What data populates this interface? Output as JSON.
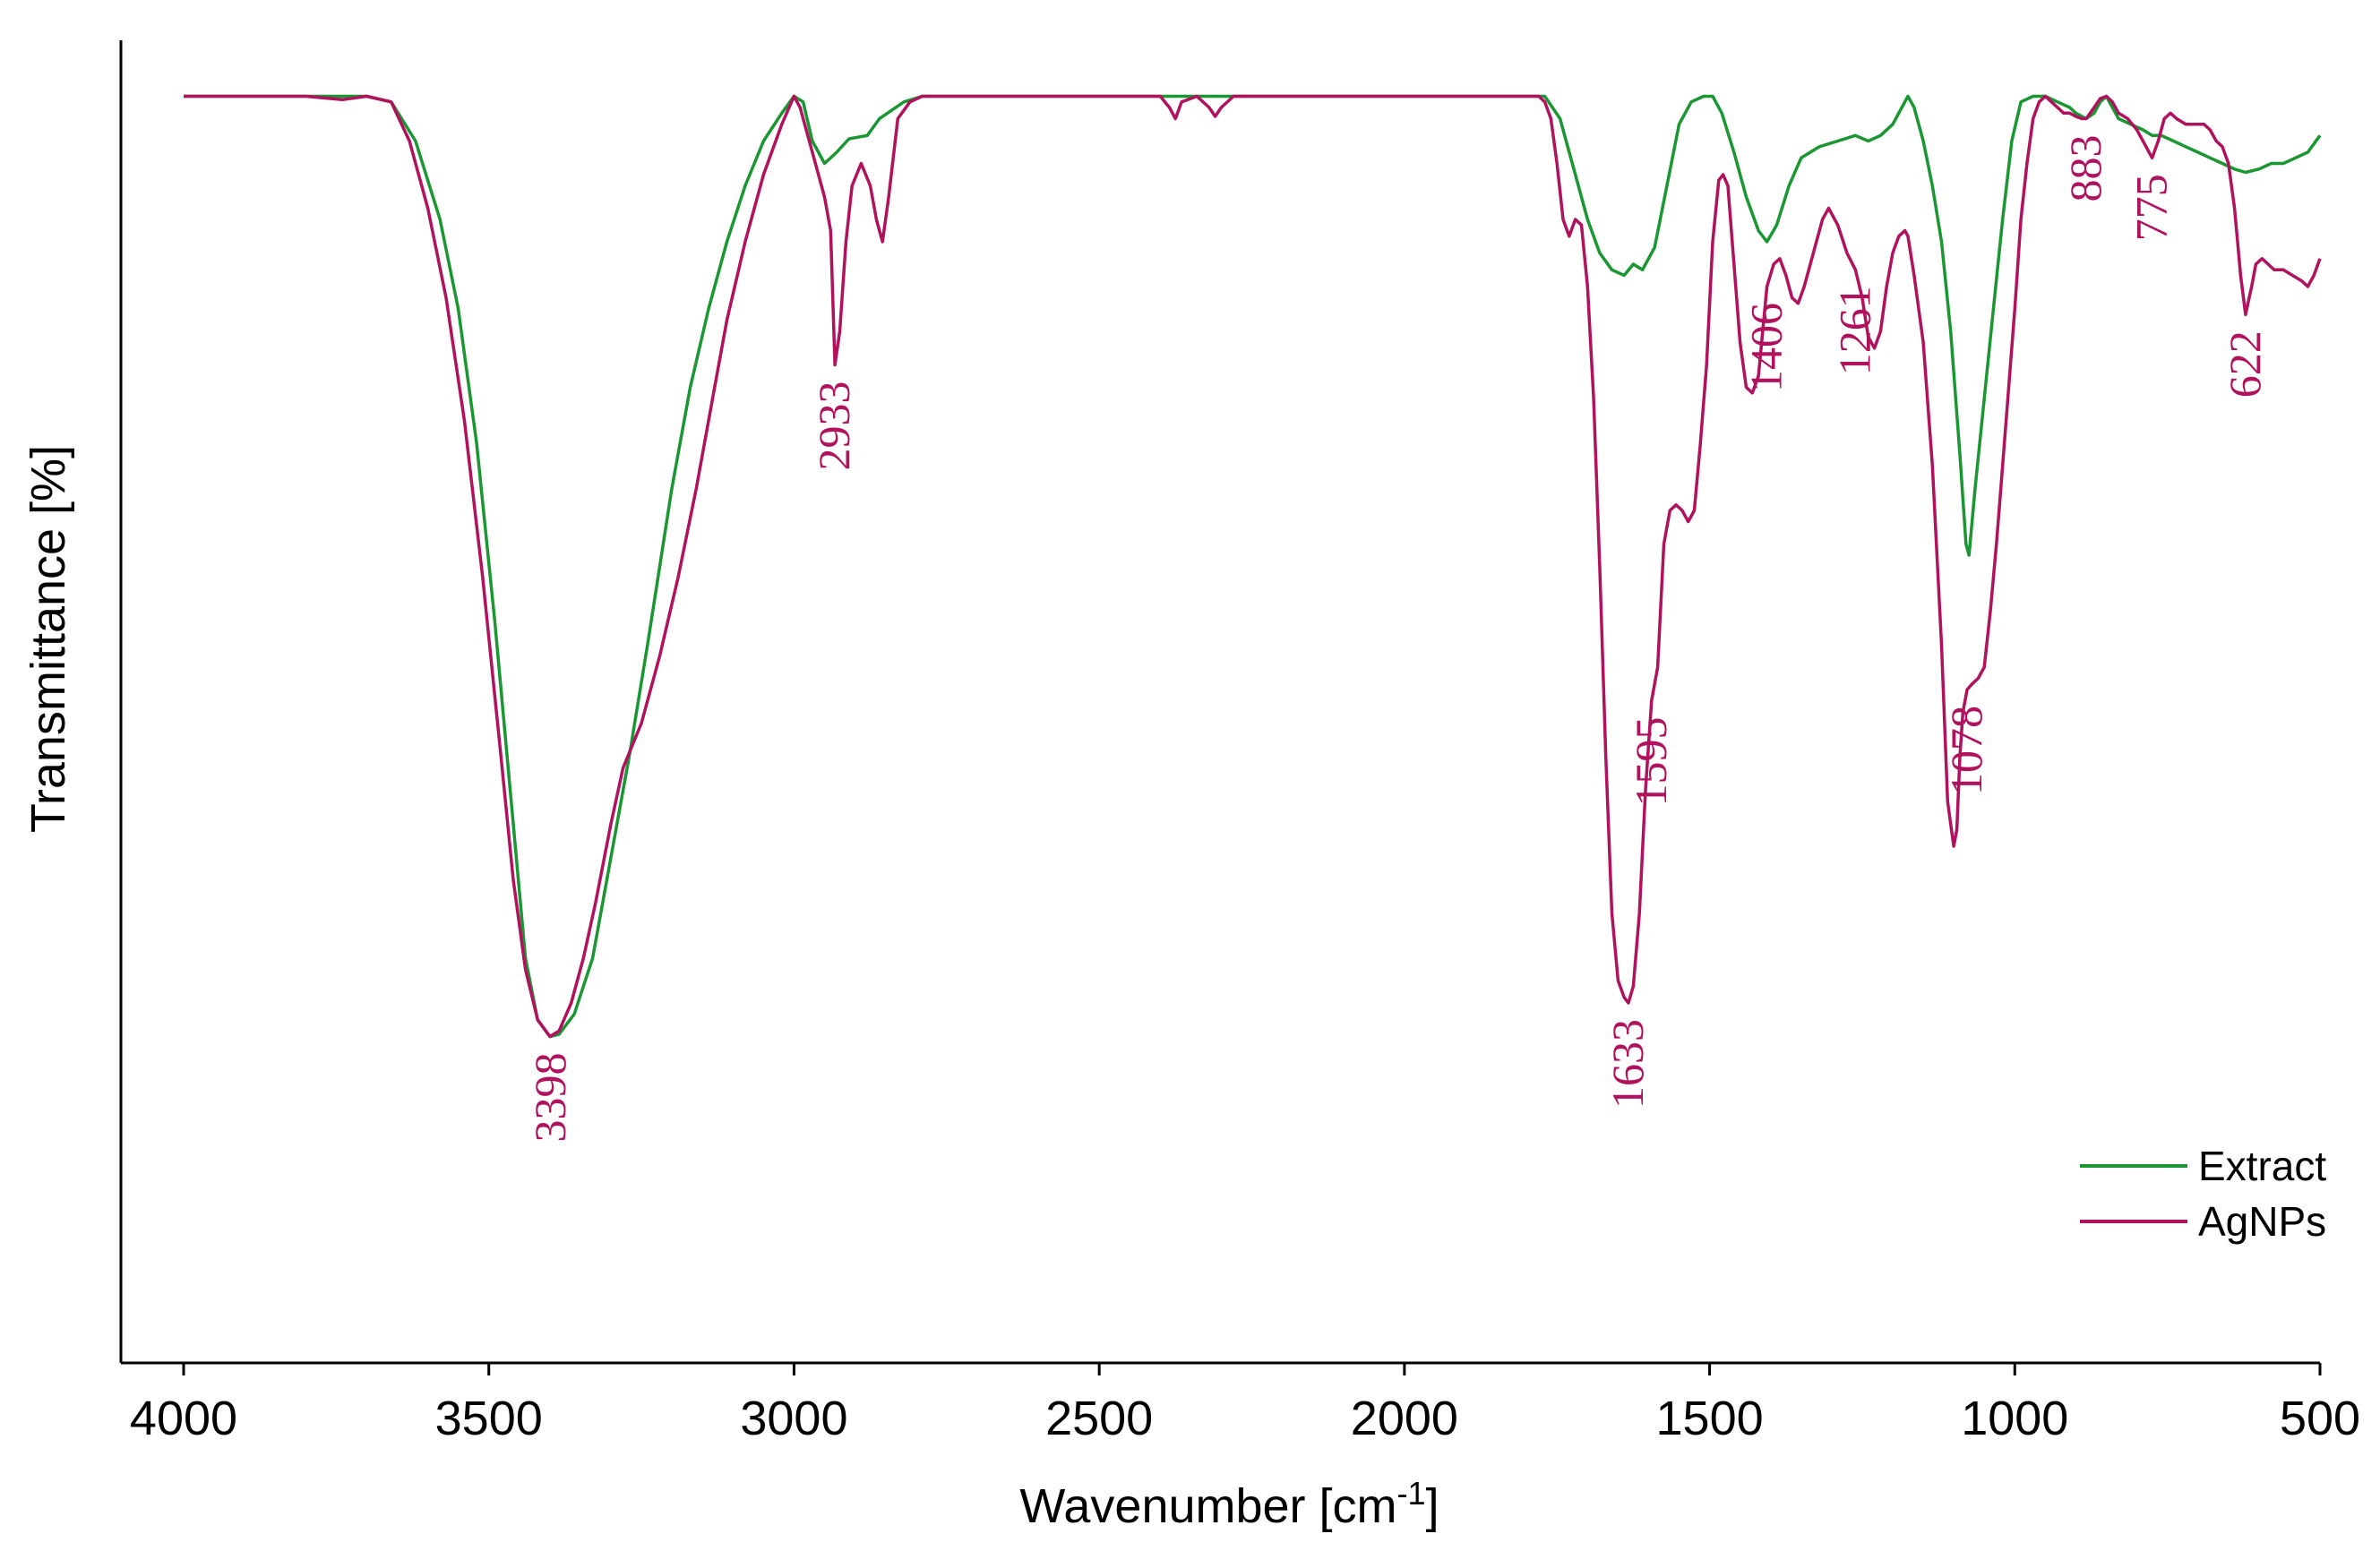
{
  "chart_data": {
    "type": "line",
    "title": "",
    "xlabel": "Wavenumber [cm",
    "xlabel_sup": "-1",
    "xlabel_suffix": "]",
    "ylabel": "Transmittance [%]",
    "xlim": [
      4000,
      500
    ],
    "ylim": [
      0,
      100
    ],
    "y_ticks_shown": false,
    "grid": false,
    "legend_position": "bottom-right",
    "x_ticks": [
      4000,
      3500,
      3000,
      2500,
      2000,
      1500,
      1000,
      500
    ],
    "colors": {
      "Extract": "#1a9632",
      "AgNPs": "#b0125e",
      "peak_labels": "#b0125e"
    },
    "series": [
      {
        "name": "Extract",
        "points": [
          [
            4000,
            97
          ],
          [
            3800,
            97
          ],
          [
            3700,
            97
          ],
          [
            3660,
            96.5
          ],
          [
            3620,
            93
          ],
          [
            3580,
            86
          ],
          [
            3550,
            78
          ],
          [
            3520,
            66
          ],
          [
            3490,
            50
          ],
          [
            3460,
            32
          ],
          [
            3440,
            20
          ],
          [
            3420,
            14.5
          ],
          [
            3400,
            13
          ],
          [
            3385,
            13.2
          ],
          [
            3360,
            15
          ],
          [
            3330,
            20
          ],
          [
            3300,
            29
          ],
          [
            3270,
            38
          ],
          [
            3240,
            48
          ],
          [
            3200,
            62
          ],
          [
            3170,
            71
          ],
          [
            3140,
            78
          ],
          [
            3110,
            84
          ],
          [
            3080,
            89
          ],
          [
            3050,
            93
          ],
          [
            3020,
            95.5
          ],
          [
            3000,
            97
          ],
          [
            2985,
            96.5
          ],
          [
            2970,
            93
          ],
          [
            2950,
            91
          ],
          [
            2930,
            92
          ],
          [
            2910,
            93.2
          ],
          [
            2880,
            93.5
          ],
          [
            2860,
            95
          ],
          [
            2820,
            96.5
          ],
          [
            2790,
            97
          ],
          [
            2600,
            97
          ],
          [
            2400,
            97
          ],
          [
            2300,
            97
          ],
          [
            2000,
            97
          ],
          [
            1800,
            97
          ],
          [
            1770,
            97
          ],
          [
            1745,
            95
          ],
          [
            1720,
            90
          ],
          [
            1700,
            86
          ],
          [
            1680,
            83
          ],
          [
            1660,
            81.5
          ],
          [
            1640,
            81
          ],
          [
            1625,
            82
          ],
          [
            1610,
            81.5
          ],
          [
            1590,
            83.5
          ],
          [
            1570,
            89
          ],
          [
            1550,
            94.5
          ],
          [
            1530,
            96.5
          ],
          [
            1510,
            97
          ],
          [
            1495,
            97
          ],
          [
            1480,
            95.5
          ],
          [
            1460,
            92
          ],
          [
            1440,
            88
          ],
          [
            1420,
            85
          ],
          [
            1406,
            84
          ],
          [
            1390,
            85.5
          ],
          [
            1370,
            89
          ],
          [
            1350,
            91.5
          ],
          [
            1320,
            92.5
          ],
          [
            1290,
            93
          ],
          [
            1261,
            93.5
          ],
          [
            1240,
            93
          ],
          [
            1220,
            93.5
          ],
          [
            1200,
            94.5
          ],
          [
            1185,
            96
          ],
          [
            1175,
            97
          ],
          [
            1165,
            96
          ],
          [
            1150,
            93
          ],
          [
            1135,
            89
          ],
          [
            1120,
            84
          ],
          [
            1105,
            76
          ],
          [
            1090,
            65
          ],
          [
            1080,
            57
          ],
          [
            1075,
            56
          ],
          [
            1065,
            62
          ],
          [
            1050,
            70
          ],
          [
            1035,
            78
          ],
          [
            1020,
            86
          ],
          [
            1005,
            93
          ],
          [
            990,
            96.5
          ],
          [
            970,
            97
          ],
          [
            950,
            97
          ],
          [
            930,
            96.5
          ],
          [
            910,
            96
          ],
          [
            900,
            95.5
          ],
          [
            883,
            95
          ],
          [
            870,
            95.5
          ],
          [
            860,
            96.5
          ],
          [
            850,
            97
          ],
          [
            840,
            96
          ],
          [
            830,
            95
          ],
          [
            810,
            94.5
          ],
          [
            790,
            94
          ],
          [
            775,
            93.5
          ],
          [
            760,
            93.5
          ],
          [
            740,
            93
          ],
          [
            720,
            92.5
          ],
          [
            700,
            92
          ],
          [
            680,
            91.5
          ],
          [
            660,
            91
          ],
          [
            640,
            90.5
          ],
          [
            622,
            90.2
          ],
          [
            600,
            90.5
          ],
          [
            580,
            91
          ],
          [
            560,
            91
          ],
          [
            540,
            91.5
          ],
          [
            520,
            92
          ],
          [
            500,
            93.5
          ]
        ]
      },
      {
        "name": "AgNPs",
        "points": [
          [
            4000,
            97
          ],
          [
            3800,
            97
          ],
          [
            3740,
            96.7
          ],
          [
            3700,
            97
          ],
          [
            3660,
            96.5
          ],
          [
            3630,
            93
          ],
          [
            3600,
            87
          ],
          [
            3570,
            79
          ],
          [
            3540,
            68
          ],
          [
            3510,
            54
          ],
          [
            3480,
            38
          ],
          [
            3460,
            27
          ],
          [
            3440,
            19
          ],
          [
            3420,
            14.5
          ],
          [
            3400,
            13
          ],
          [
            3385,
            13.5
          ],
          [
            3365,
            16
          ],
          [
            3345,
            20
          ],
          [
            3325,
            25
          ],
          [
            3300,
            32
          ],
          [
            3280,
            37
          ],
          [
            3250,
            41
          ],
          [
            3220,
            47
          ],
          [
            3190,
            54
          ],
          [
            3160,
            62
          ],
          [
            3130,
            71
          ],
          [
            3110,
            77
          ],
          [
            3080,
            84
          ],
          [
            3050,
            90
          ],
          [
            3020,
            94.5
          ],
          [
            3000,
            97
          ],
          [
            2990,
            96
          ],
          [
            2975,
            93
          ],
          [
            2960,
            90
          ],
          [
            2950,
            88
          ],
          [
            2940,
            85
          ],
          [
            2933,
            73
          ],
          [
            2925,
            76
          ],
          [
            2915,
            84
          ],
          [
            2905,
            89
          ],
          [
            2890,
            91
          ],
          [
            2875,
            89
          ],
          [
            2865,
            86
          ],
          [
            2855,
            84
          ],
          [
            2845,
            88
          ],
          [
            2830,
            95
          ],
          [
            2810,
            96.5
          ],
          [
            2790,
            97
          ],
          [
            2400,
            97
          ],
          [
            2385,
            96
          ],
          [
            2375,
            95
          ],
          [
            2365,
            96.5
          ],
          [
            2340,
            97
          ],
          [
            2320,
            96
          ],
          [
            2310,
            95.2
          ],
          [
            2300,
            96
          ],
          [
            2280,
            97
          ],
          [
            2200,
            97
          ],
          [
            1900,
            97
          ],
          [
            1780,
            97
          ],
          [
            1770,
            96.5
          ],
          [
            1760,
            95
          ],
          [
            1750,
            91
          ],
          [
            1740,
            86
          ],
          [
            1730,
            84.5
          ],
          [
            1720,
            86
          ],
          [
            1710,
            85.5
          ],
          [
            1700,
            80
          ],
          [
            1690,
            70
          ],
          [
            1680,
            55
          ],
          [
            1670,
            38
          ],
          [
            1660,
            24
          ],
          [
            1650,
            18
          ],
          [
            1640,
            16.5
          ],
          [
            1633,
            16
          ],
          [
            1625,
            17.5
          ],
          [
            1615,
            24
          ],
          [
            1605,
            35
          ],
          [
            1595,
            43
          ],
          [
            1585,
            46
          ],
          [
            1575,
            57
          ],
          [
            1565,
            60
          ],
          [
            1555,
            60.5
          ],
          [
            1545,
            60
          ],
          [
            1535,
            59
          ],
          [
            1525,
            60
          ],
          [
            1515,
            66
          ],
          [
            1505,
            73
          ],
          [
            1495,
            84
          ],
          [
            1485,
            89.5
          ],
          [
            1478,
            90
          ],
          [
            1470,
            89
          ],
          [
            1460,
            82
          ],
          [
            1450,
            75
          ],
          [
            1440,
            71
          ],
          [
            1430,
            70.5
          ],
          [
            1420,
            72
          ],
          [
            1406,
            80
          ],
          [
            1395,
            82
          ],
          [
            1385,
            82.5
          ],
          [
            1375,
            81
          ],
          [
            1365,
            79
          ],
          [
            1355,
            78.5
          ],
          [
            1345,
            80
          ],
          [
            1330,
            83
          ],
          [
            1315,
            86
          ],
          [
            1305,
            87
          ],
          [
            1290,
            85.5
          ],
          [
            1275,
            83
          ],
          [
            1261,
            81.5
          ],
          [
            1250,
            79
          ],
          [
            1240,
            75.5
          ],
          [
            1230,
            74.5
          ],
          [
            1220,
            76
          ],
          [
            1210,
            80
          ],
          [
            1200,
            83
          ],
          [
            1190,
            84.5
          ],
          [
            1180,
            85
          ],
          [
            1175,
            84.5
          ],
          [
            1165,
            81
          ],
          [
            1150,
            75
          ],
          [
            1135,
            64
          ],
          [
            1120,
            48
          ],
          [
            1110,
            34
          ],
          [
            1100,
            30
          ],
          [
            1095,
            31.5
          ],
          [
            1090,
            38
          ],
          [
            1085,
            42
          ],
          [
            1078,
            44
          ],
          [
            1070,
            44.5
          ],
          [
            1060,
            45
          ],
          [
            1050,
            46
          ],
          [
            1040,
            51
          ],
          [
            1030,
            57
          ],
          [
            1020,
            64
          ],
          [
            1010,
            71
          ],
          [
            1000,
            78
          ],
          [
            990,
            86
          ],
          [
            980,
            91
          ],
          [
            970,
            95
          ],
          [
            960,
            96.5
          ],
          [
            950,
            97
          ],
          [
            940,
            96.5
          ],
          [
            930,
            96
          ],
          [
            920,
            95.5
          ],
          [
            910,
            95.5
          ],
          [
            900,
            95.2
          ],
          [
            890,
            95
          ],
          [
            883,
            95
          ],
          [
            870,
            96
          ],
          [
            860,
            96.8
          ],
          [
            850,
            97
          ],
          [
            840,
            96.5
          ],
          [
            830,
            95.5
          ],
          [
            815,
            95
          ],
          [
            800,
            94
          ],
          [
            790,
            93
          ],
          [
            775,
            91.5
          ],
          [
            765,
            93
          ],
          [
            755,
            95
          ],
          [
            745,
            95.5
          ],
          [
            735,
            95
          ],
          [
            720,
            94.5
          ],
          [
            700,
            94.5
          ],
          [
            690,
            94.5
          ],
          [
            680,
            94
          ],
          [
            670,
            93
          ],
          [
            660,
            92.5
          ],
          [
            650,
            91
          ],
          [
            640,
            87
          ],
          [
            630,
            81
          ],
          [
            622,
            77.5
          ],
          [
            612,
            80
          ],
          [
            605,
            82
          ],
          [
            595,
            82.5
          ],
          [
            585,
            82
          ],
          [
            575,
            81.5
          ],
          [
            560,
            81.5
          ],
          [
            545,
            81
          ],
          [
            530,
            80.5
          ],
          [
            520,
            80
          ],
          [
            510,
            81
          ],
          [
            500,
            82.5
          ]
        ]
      }
    ],
    "peak_annotations": [
      {
        "label": "3398",
        "x": 3398,
        "y": 13
      },
      {
        "label": "2933",
        "x": 2933,
        "y": 73
      },
      {
        "label": "1633",
        "x": 1633,
        "y": 16
      },
      {
        "label": "1595",
        "x": 1595,
        "y": 43
      },
      {
        "label": "1406",
        "x": 1406,
        "y": 80
      },
      {
        "label": "1261",
        "x": 1261,
        "y": 81.5
      },
      {
        "label": "1078",
        "x": 1078,
        "y": 44
      },
      {
        "label": "883",
        "x": 883,
        "y": 95
      },
      {
        "label": "775",
        "x": 775,
        "y": 91.5
      },
      {
        "label": "622",
        "x": 622,
        "y": 77.5
      }
    ]
  }
}
